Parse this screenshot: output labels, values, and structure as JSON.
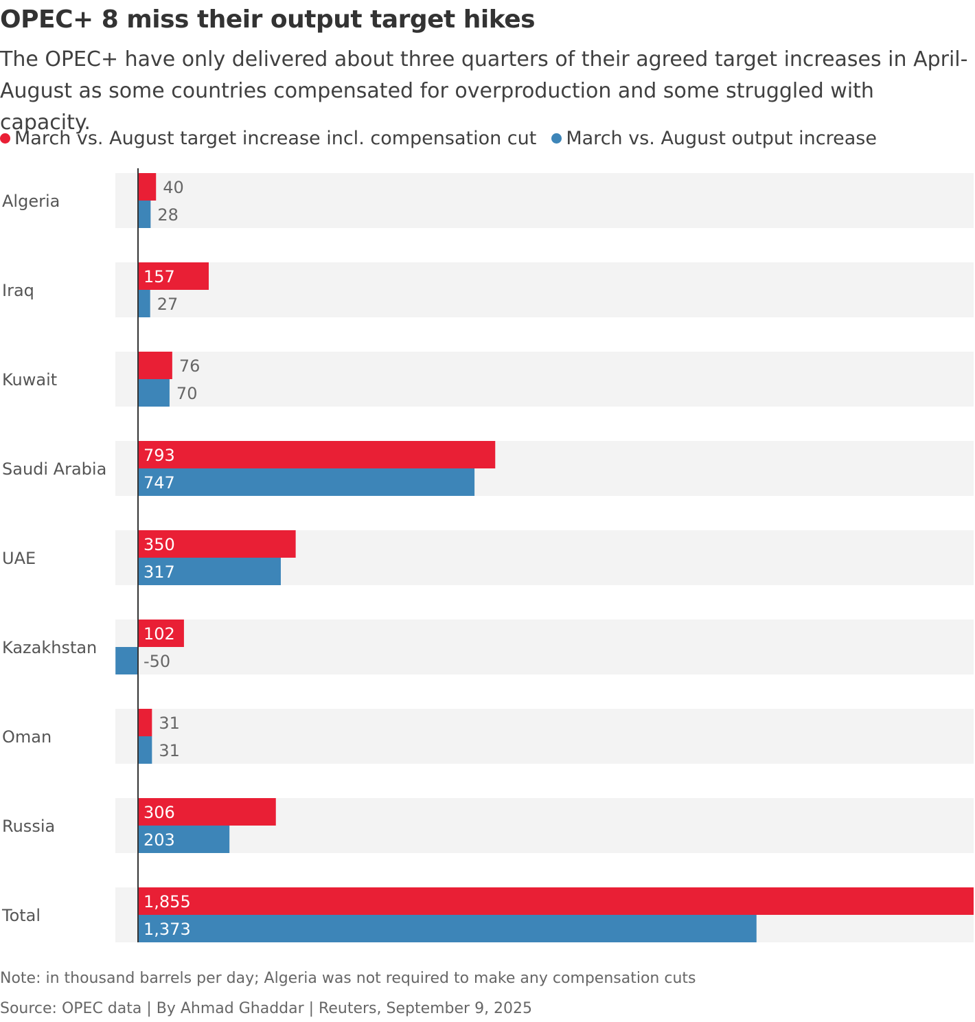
{
  "title": "OPEC+ 8 miss their output target hikes",
  "subtitle": "The OPEC+ have only delivered about three quarters of their agreed target increases in April-August as some countries compensated for overproduction and some struggled with capacity.",
  "legend": [
    {
      "label": "March vs. August target increase incl. compensation cut",
      "color": "#e91f35",
      "icon": "circle-dot"
    },
    {
      "label": "March vs. August output increase",
      "color": "#3d85b8",
      "icon": "circle-dot"
    }
  ],
  "chart_data": {
    "type": "bar",
    "orientation": "horizontal",
    "title": "OPEC+ 8 miss their output target hikes",
    "xlabel": "",
    "ylabel": "",
    "units": "thousand barrels per day",
    "categories": [
      "Algeria",
      "Iraq",
      "Kuwait",
      "Saudi Arabia",
      "UAE",
      "Kazakhstan",
      "Oman",
      "Russia",
      "Total"
    ],
    "series": [
      {
        "name": "March vs. August target increase incl. compensation cut",
        "color": "#e91f35",
        "values": [
          40,
          157,
          76,
          793,
          350,
          102,
          31,
          306,
          1855
        ],
        "labels": [
          "40",
          "157",
          "76",
          "793",
          "350",
          "102",
          "31",
          "306",
          "1,855"
        ]
      },
      {
        "name": "March vs. August output increase",
        "color": "#3d85b8",
        "values": [
          28,
          27,
          70,
          747,
          317,
          -50,
          31,
          203,
          1373
        ],
        "labels": [
          "28",
          "27",
          "70",
          "747",
          "317",
          "-50",
          "31",
          "203",
          "1,373"
        ]
      }
    ],
    "xlim": [
      -50,
      1855
    ],
    "grid": false,
    "legend_position": "top-left"
  },
  "footer": {
    "note": "Note: in thousand barrels per day; Algeria was not required to make any compensation cuts",
    "source": "Source: OPEC data  | By Ahmad Ghaddar | Reuters, September 9, 2025"
  }
}
